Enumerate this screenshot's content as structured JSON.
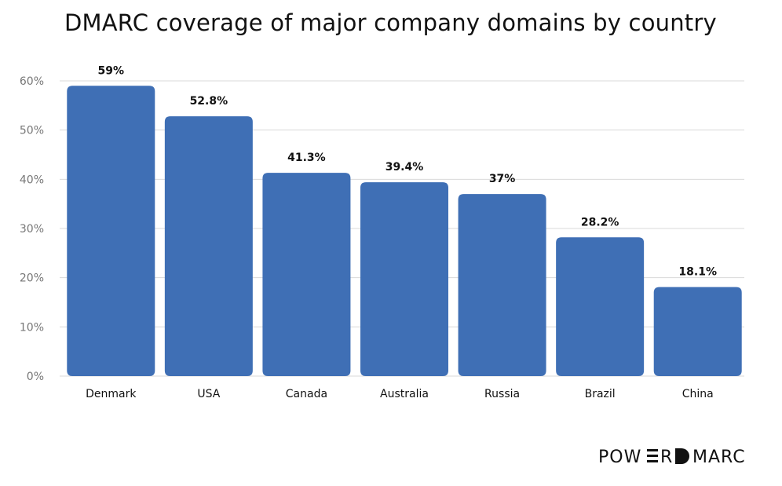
{
  "chart_data": {
    "type": "bar",
    "title": "DMARC coverage of major company domains by country",
    "categories": [
      "Denmark",
      "USA",
      "Canada",
      "Australia",
      "Russia",
      "Brazil",
      "China"
    ],
    "values": [
      59,
      52.8,
      41.3,
      39.4,
      37,
      28.2,
      18.1
    ],
    "value_labels": [
      "59%",
      "52.8%",
      "41.3%",
      "39.4%",
      "37%",
      "28.2%",
      "18.1%"
    ],
    "y_ticks": [
      "0%",
      "10%",
      "20%",
      "30%",
      "40%",
      "50%",
      "60%"
    ],
    "y_tick_values": [
      0,
      10,
      20,
      30,
      40,
      50,
      60
    ],
    "ylim": [
      0,
      60
    ],
    "grid": true,
    "legend": "none",
    "colors": {
      "bar": "#3F6FB5",
      "grid": "#DADADA",
      "tick_text": "#777777",
      "label_text": "#111111"
    }
  },
  "logo": {
    "text": "POWERDMARC"
  }
}
